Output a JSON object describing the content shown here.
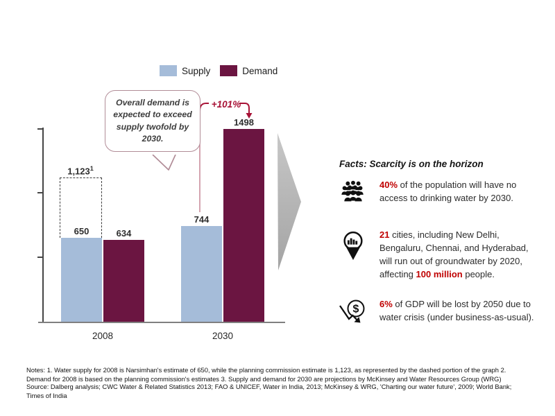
{
  "annotation": {
    "bubble_text": "Overall demand is expected to exceed supply twofold by 2030.",
    "growth_label": "+101%"
  },
  "chart_data": {
    "type": "bar",
    "title": "",
    "categories": [
      "2008",
      "2030"
    ],
    "series": [
      {
        "name": "Supply",
        "values": [
          650,
          744
        ]
      },
      {
        "name": "Demand",
        "values": [
          634,
          1498
        ]
      }
    ],
    "bar_labels": {
      "supply_2008": "650",
      "demand_2008": "634",
      "supply_2030": "744",
      "demand_2030": "1498"
    },
    "alt_estimate_value": 1123,
    "alt_estimate_label": "1,123",
    "alt_estimate_superscript": "1",
    "ylim": [
      0,
      1700
    ],
    "yticks": [
      500,
      1000,
      1500
    ],
    "grid": false,
    "legend_position": "top",
    "colors": {
      "supply": "#a5bcd9",
      "demand": "#6b1541",
      "growth_accent": "#a81236",
      "bracket_line": "#c98e9c"
    }
  },
  "facts": {
    "heading": "Facts: Scarcity is on the horizon",
    "highlight_color": "#c00000",
    "items": [
      {
        "icon": "people-crowd-icon",
        "segments": [
          {
            "text": "40%",
            "highlight": true
          },
          {
            "text": " of the population will have no access to drinking water by 2030.",
            "highlight": false
          }
        ]
      },
      {
        "icon": "map-pin-city-icon",
        "segments": [
          {
            "text": "21",
            "highlight": true
          },
          {
            "text": " cities, including New Delhi, Bengaluru, Chennai, and Hyderabad, will run out of groundwater by 2020, affecting ",
            "highlight": false
          },
          {
            "text": "100 million",
            "highlight": true
          },
          {
            "text": " people.",
            "highlight": false
          }
        ]
      },
      {
        "icon": "gdp-decline-icon",
        "segments": [
          {
            "text": "6%",
            "highlight": true
          },
          {
            "text": " of GDP will be lost by 2050 due to water crisis (under business-as-usual).",
            "highlight": false
          }
        ]
      }
    ]
  },
  "icons": {
    "dollar_glyph": "$"
  },
  "footer": {
    "notes": "Notes: 1. Water supply for 2008 is Narsimhan's estimate of 650, while the planning commission estimate is 1,123, as represented by the dashed portion of the graph 2. Demand for 2008 is based on the planning commission's estimates 3. Supply and demand for 2030 are projections by McKinsey and Water Resources Group (WRG)",
    "source": "Source: Dalberg analysis; CWC Water & Related Statistics 2013; FAO & UNICEF, Water in India, 2013; McKinsey & WRG, 'Charting our water future', 2009; World Bank; Times of India"
  }
}
